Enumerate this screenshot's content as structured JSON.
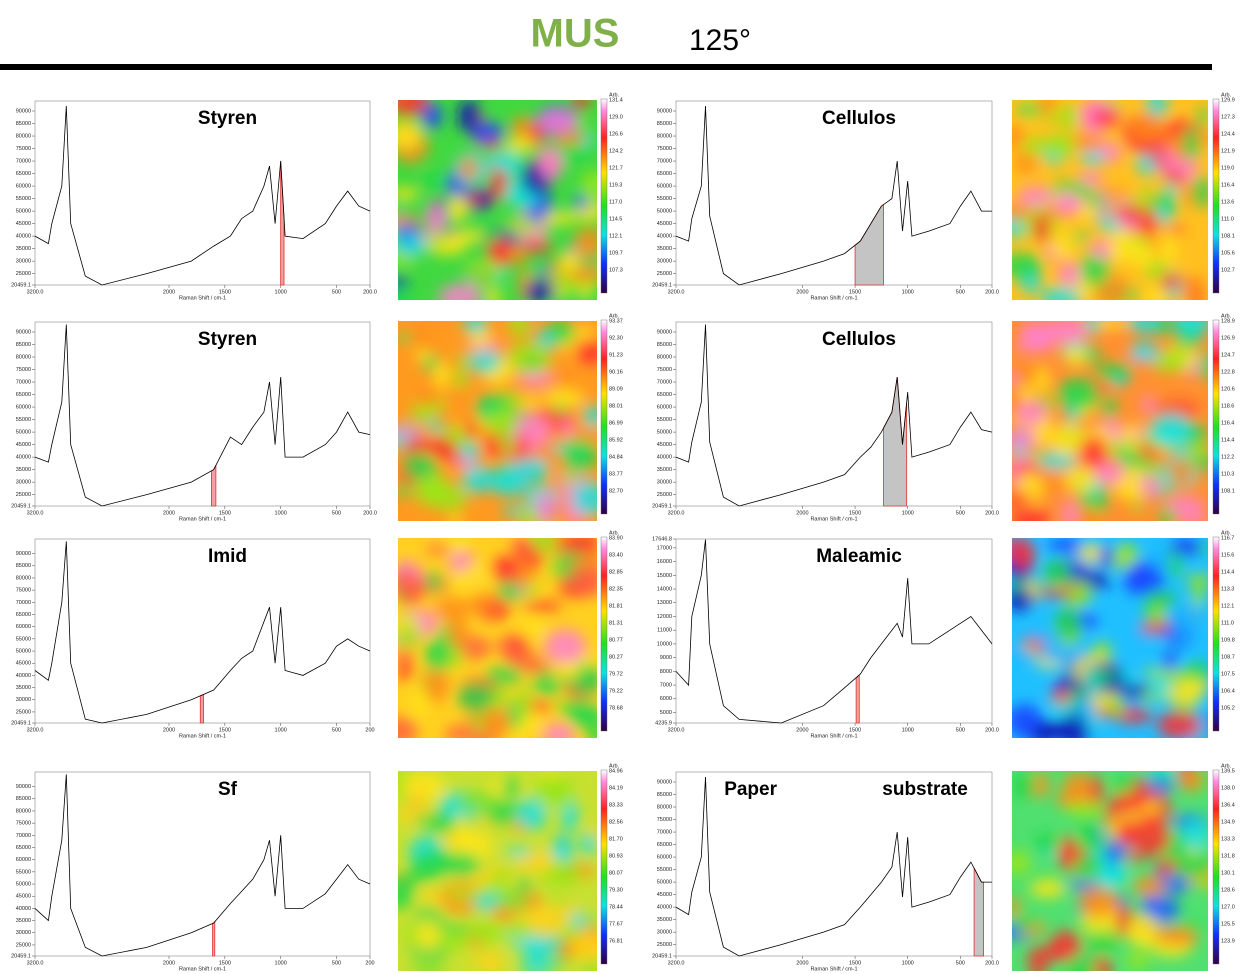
{
  "header": {
    "title": "MUS",
    "angle": "125°"
  },
  "panels": [
    {
      "label": "Styren",
      "spectrum": {
        "type": "line",
        "x": [
          3200,
          3080,
          3050,
          2960,
          2920,
          2880,
          2750,
          2600,
          2200,
          1800,
          1600,
          1450,
          1350,
          1250,
          1150,
          1100,
          1050,
          1000,
          960,
          800,
          600,
          500,
          400,
          300,
          200
        ],
        "values": [
          40000,
          37000,
          45000,
          60000,
          92000,
          45000,
          24000,
          20459.1,
          25000,
          30000,
          36000,
          40000,
          47000,
          50000,
          60000,
          68000,
          45000,
          70000,
          40000,
          39000,
          45000,
          52000,
          58000,
          52000,
          50000
        ],
        "xlim": [
          3200,
          200
        ],
        "ylim": [
          20459.1,
          94000
        ],
        "yticks": [
          20459.1,
          25000,
          30000,
          35000,
          40000,
          45000,
          50000,
          55000,
          60000,
          65000,
          70000,
          75000,
          80000,
          85000,
          90000
        ],
        "xticks": [
          {
            "value": 3200,
            "label": "3200.0"
          },
          2000,
          1500,
          1000,
          500,
          {
            "value": 200,
            "label": "200.0"
          }
        ],
        "xlabel": "Raman Shift / cm-1",
        "highlight": {
          "range": [
            1000,
            970
          ],
          "color": "#f2a0a0",
          "edge": "#e03030"
        }
      },
      "colorbar": {
        "title": "Arb.",
        "ticks": [
          "131.4",
          "129.0",
          "126.6",
          "124.2",
          "121.7",
          "119.3",
          "117.0",
          "114.5",
          "112.1",
          "109.7",
          "107.3"
        ]
      }
    },
    {
      "label": "Styren",
      "spectrum": {
        "type": "line",
        "x": [
          3200,
          3080,
          3050,
          2960,
          2920,
          2880,
          2750,
          2600,
          2200,
          1800,
          1600,
          1450,
          1350,
          1250,
          1150,
          1100,
          1050,
          1000,
          960,
          800,
          600,
          500,
          400,
          300,
          200
        ],
        "values": [
          40000,
          38000,
          45000,
          62000,
          93000,
          45000,
          24000,
          20459.1,
          25000,
          30000,
          35000,
          48000,
          45000,
          52000,
          58000,
          70000,
          45000,
          72000,
          40000,
          40000,
          45000,
          50000,
          58000,
          50000,
          49000
        ],
        "xlim": [
          3200,
          200
        ],
        "ylim": [
          20459.1,
          94000
        ],
        "yticks": [
          20459.1,
          25000,
          30000,
          35000,
          40000,
          45000,
          50000,
          55000,
          60000,
          65000,
          70000,
          75000,
          80000,
          85000,
          90000
        ],
        "xticks": [
          {
            "value": 3200,
            "label": "3200.0"
          },
          2000,
          1500,
          1000,
          500,
          {
            "value": 200,
            "label": "200.0"
          }
        ],
        "xlabel": "Raman Shift / cm-1",
        "highlight": {
          "range": [
            1620,
            1580
          ],
          "color": "#f2a0a0",
          "edge": "#e03030"
        }
      },
      "colorbar": {
        "title": "Arb.",
        "ticks": [
          "93.37",
          "92.30",
          "91.23",
          "90.16",
          "89.09",
          "88.01",
          "86.99",
          "85.92",
          "84.84",
          "83.77",
          "82.70"
        ]
      }
    },
    {
      "label": "Imid",
      "spectrum": {
        "type": "line",
        "x": [
          3200,
          3080,
          3050,
          2960,
          2920,
          2880,
          2750,
          2600,
          2200,
          1800,
          1600,
          1450,
          1350,
          1250,
          1150,
          1100,
          1050,
          1000,
          960,
          800,
          600,
          500,
          400,
          300,
          200
        ],
        "values": [
          42000,
          38000,
          45000,
          70000,
          95000,
          45000,
          22000,
          20459.1,
          24000,
          30000,
          34000,
          42000,
          47000,
          50000,
          62000,
          68000,
          45000,
          68000,
          42000,
          40000,
          45000,
          52000,
          55000,
          52000,
          50000
        ],
        "xlim": [
          3200,
          200
        ],
        "ylim": [
          20459.1,
          96000
        ],
        "yticks": [
          20459.1,
          25000,
          30000,
          35000,
          40000,
          45000,
          50000,
          55000,
          60000,
          65000,
          70000,
          75000,
          80000,
          85000,
          90000
        ],
        "xticks": [
          {
            "value": 3200,
            "label": "3200.0"
          },
          2000,
          1500,
          1000,
          500,
          200
        ],
        "xlabel": "Raman Shift / cm-1",
        "highlight": {
          "range": [
            1720,
            1690
          ],
          "color": "#f2a0a0",
          "edge": "#e03030"
        }
      },
      "colorbar": {
        "title": "Arb.",
        "ticks": [
          "83.90",
          "83.40",
          "82.85",
          "82.35",
          "81.81",
          "81.31",
          "80.77",
          "80.27",
          "79.72",
          "79.22",
          "78.68"
        ]
      }
    },
    {
      "label": "Sf",
      "spectrum": {
        "type": "line",
        "x": [
          3200,
          3080,
          3050,
          2960,
          2920,
          2880,
          2750,
          2600,
          2200,
          1800,
          1600,
          1450,
          1350,
          1250,
          1150,
          1100,
          1050,
          1000,
          960,
          800,
          600,
          500,
          400,
          300,
          200
        ],
        "values": [
          40000,
          35000,
          45000,
          68000,
          95000,
          40000,
          24000,
          20459.1,
          24000,
          30000,
          34000,
          42000,
          47000,
          52000,
          60000,
          68000,
          45000,
          70000,
          40000,
          40000,
          46000,
          52000,
          58000,
          52000,
          50000
        ],
        "xlim": [
          3200,
          200
        ],
        "ylim": [
          20459.1,
          96000
        ],
        "yticks": [
          20459.1,
          25000,
          30000,
          35000,
          40000,
          45000,
          50000,
          55000,
          60000,
          65000,
          70000,
          75000,
          80000,
          85000,
          90000
        ],
        "xticks": [
          {
            "value": 3200,
            "label": "3200.0"
          },
          2000,
          1500,
          1000,
          500,
          200
        ],
        "xlabel": "Raman Shift / cm-1",
        "highlight": {
          "range": [
            1610,
            1590
          ],
          "color": "#f2a0a0",
          "edge": "#e03030"
        }
      },
      "colorbar": {
        "title": "Arb.",
        "ticks": [
          "84.96",
          "84.19",
          "83.33",
          "82.56",
          "81.70",
          "80.93",
          "80.07",
          "79.30",
          "78.44",
          "77.67",
          "76.81"
        ]
      }
    },
    {
      "label": "Cellulos",
      "spectrum": {
        "type": "line",
        "x": [
          3200,
          3080,
          3050,
          2960,
          2920,
          2880,
          2750,
          2600,
          2200,
          1800,
          1600,
          1450,
          1350,
          1250,
          1150,
          1100,
          1050,
          1000,
          960,
          800,
          600,
          500,
          400,
          300,
          200
        ],
        "values": [
          40000,
          38000,
          47000,
          60000,
          92000,
          48000,
          25000,
          20459.1,
          25000,
          30000,
          33000,
          38000,
          45000,
          52000,
          55000,
          70000,
          42000,
          62000,
          40000,
          42000,
          45000,
          52000,
          58000,
          50000,
          50000
        ],
        "xlim": [
          3200,
          200
        ],
        "ylim": [
          20459.1,
          94000
        ],
        "yticks": [
          20459.1,
          25000,
          30000,
          35000,
          40000,
          45000,
          50000,
          55000,
          60000,
          65000,
          70000,
          75000,
          80000,
          85000,
          90000
        ],
        "xticks": [
          {
            "value": 3200,
            "label": "3200.0"
          },
          2000,
          1500,
          1000,
          500,
          {
            "value": 200,
            "label": "200.0"
          }
        ],
        "xlabel": "Raman Shift / cm-1",
        "highlight": {
          "range": [
            1500,
            1230
          ],
          "color": "#c4c4c4",
          "edge": "#e03030"
        }
      },
      "colorbar": {
        "title": "Arb.",
        "ticks": [
          "129.9",
          "127.3",
          "124.4",
          "121.9",
          "119.0",
          "116.4",
          "113.6",
          "111.0",
          "108.1",
          "105.6",
          "102.7"
        ]
      }
    },
    {
      "label": "Cellulos",
      "spectrum": {
        "type": "line",
        "x": [
          3200,
          3080,
          3050,
          2960,
          2920,
          2880,
          2750,
          2600,
          2200,
          1800,
          1600,
          1450,
          1350,
          1250,
          1150,
          1100,
          1050,
          1000,
          960,
          800,
          600,
          500,
          400,
          300,
          200
        ],
        "values": [
          40000,
          38000,
          46000,
          62000,
          93000,
          46000,
          24000,
          20459.1,
          25000,
          30000,
          33000,
          40000,
          44000,
          50000,
          58000,
          72000,
          45000,
          66000,
          40000,
          42000,
          45000,
          52000,
          58000,
          51000,
          50000
        ],
        "xlim": [
          3200,
          200
        ],
        "ylim": [
          20459.1,
          94000
        ],
        "yticks": [
          20459.1,
          25000,
          30000,
          35000,
          40000,
          45000,
          50000,
          55000,
          60000,
          65000,
          70000,
          75000,
          80000,
          85000,
          90000
        ],
        "xticks": [
          {
            "value": 3200,
            "label": "3200.0"
          },
          2000,
          1500,
          1000,
          500,
          {
            "value": 200,
            "label": "200.0"
          }
        ],
        "xlabel": "Raman Shift / cm-1",
        "highlight": {
          "range": [
            1230,
            1010
          ],
          "color": "#c4c4c4",
          "edge": "#e03030"
        }
      },
      "colorbar": {
        "title": "Arb.",
        "ticks": [
          "128.9",
          "126.9",
          "124.7",
          "122.8",
          "120.6",
          "118.6",
          "116.4",
          "114.4",
          "112.2",
          "110.3",
          "108.1"
        ]
      }
    },
    {
      "label": "Maleamic",
      "spectrum": {
        "type": "line",
        "x": [
          3200,
          3080,
          3050,
          2960,
          2920,
          2880,
          2750,
          2600,
          2200,
          1800,
          1600,
          1450,
          1350,
          1250,
          1150,
          1100,
          1050,
          1000,
          960,
          800,
          600,
          500,
          400,
          300,
          200
        ],
        "values": [
          8000,
          7000,
          12000,
          15000,
          17600,
          10000,
          5500,
          4500,
          4235.9,
          5500,
          6800,
          7800,
          9000,
          10000,
          11000,
          11500,
          10500,
          14800,
          10000,
          10000,
          11000,
          11500,
          12000,
          11000,
          10000
        ],
        "xlim": [
          3200,
          200
        ],
        "ylim": [
          4235.9,
          17646.8
        ],
        "yticks": [
          4235.9,
          5000,
          6000,
          7000,
          8000,
          9000,
          10000,
          11000,
          12000,
          13000,
          14000,
          15000,
          16000,
          17000,
          17646.8
        ],
        "xticks": [
          {
            "value": 3200,
            "label": "3200.0"
          },
          2000,
          1500,
          1000,
          500,
          {
            "value": 200,
            "label": "200.0"
          }
        ],
        "xlabel": "Raman Shift / cm-1",
        "highlight": {
          "range": [
            1490,
            1460
          ],
          "color": "#f2a0a0",
          "edge": "#e03030"
        }
      },
      "colorbar": {
        "title": "Arb.",
        "ticks": [
          "116.7",
          "115.6",
          "114.4",
          "113.3",
          "112.1",
          "111.0",
          "109.8",
          "108.7",
          "107.5",
          "106.4",
          "105.2"
        ]
      }
    },
    {
      "label": "Paper substrate",
      "spectrum": {
        "type": "line",
        "x": [
          3200,
          3080,
          3050,
          2960,
          2920,
          2880,
          2750,
          2600,
          2200,
          1800,
          1600,
          1450,
          1350,
          1250,
          1150,
          1100,
          1050,
          1000,
          960,
          800,
          600,
          500,
          400,
          300,
          200
        ],
        "values": [
          40000,
          37000,
          46000,
          60000,
          92000,
          46000,
          24000,
          20459.1,
          25000,
          30000,
          33000,
          40000,
          45000,
          50000,
          56000,
          70000,
          44000,
          68000,
          40000,
          42000,
          45000,
          52000,
          58000,
          50000,
          50000
        ],
        "xlim": [
          3200,
          200
        ],
        "ylim": [
          20459.1,
          94000
        ],
        "yticks": [
          20459.1,
          25000,
          30000,
          35000,
          40000,
          45000,
          50000,
          55000,
          60000,
          65000,
          70000,
          75000,
          80000,
          85000,
          90000
        ],
        "xticks": [
          {
            "value": 3200,
            "label": "3200.0"
          },
          2000,
          1500,
          1000,
          500,
          {
            "value": 200,
            "label": "200.0"
          }
        ],
        "xlabel": "Raman Shift / cm-1",
        "highlight": {
          "range": [
            370,
            280
          ],
          "color": "#c4c4c4",
          "edge": "#e03030"
        }
      },
      "colorbar": {
        "title": "Arb.",
        "ticks": [
          "139.5",
          "138.0",
          "136.4",
          "134.9",
          "133.3",
          "131.8",
          "130.1",
          "128.6",
          "127.0",
          "125.5",
          "123.9"
        ]
      }
    }
  ]
}
